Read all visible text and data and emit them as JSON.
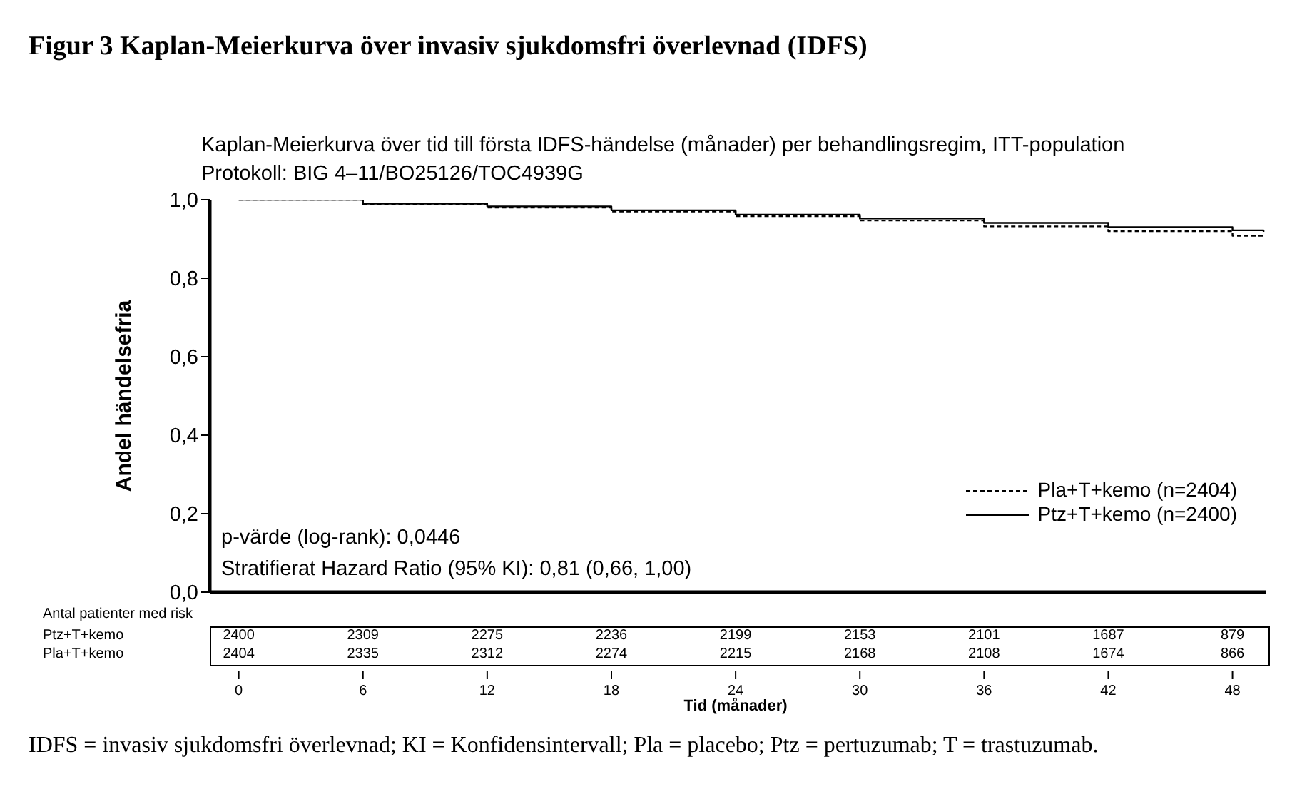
{
  "chart_data": {
    "type": "step",
    "title": "Figur 3 Kaplan-Meierkurva över invasiv sjukdomsfri överlevnad (IDFS)",
    "subtitle": "Kaplan-Meierkurva över tid till första IDFS-händelse (månader) per behandlingsregim, ITT-population",
    "xlabel": "Tid (månader)",
    "ylabel": "Andel händelsefria",
    "x": [
      0,
      6,
      12,
      18,
      24,
      30,
      36,
      42,
      48,
      49.5
    ],
    "series": [
      {
        "name": "Pla+T+kemo (n=2404)",
        "color": "#000000",
        "line_style": "dashed",
        "values": [
          1.0,
          0.989,
          0.98,
          0.97,
          0.958,
          0.947,
          0.932,
          0.92,
          0.908,
          0.906
        ]
      },
      {
        "name": "Ptz+T+kemo (n=2400)",
        "color": "#000000",
        "line_style": "solid",
        "values": [
          1.0,
          0.99,
          0.983,
          0.973,
          0.962,
          0.952,
          0.941,
          0.93,
          0.922,
          0.918
        ]
      }
    ],
    "xlim": [
      -1.4,
      49.6
    ],
    "xticks": [
      0,
      6,
      12,
      18,
      24,
      30,
      36,
      42,
      48
    ],
    "ylim": [
      0,
      1.0
    ],
    "yticks": [
      {
        "value": 0,
        "label": "0,0"
      },
      {
        "value": 0.2,
        "label": "0,2"
      },
      {
        "value": 0.4,
        "label": "0,4"
      },
      {
        "value": 0.6,
        "label": "0,6"
      },
      {
        "value": 0.8,
        "label": "0,8"
      },
      {
        "value": 1.0,
        "label": "1,0"
      }
    ],
    "grid": false,
    "legend": "bottom right",
    "marker": "none",
    "annotations": [
      "Protokoll: BIG 4–11/BO25126/TOC4939G",
      "p-värde (log-rank): 0,0446",
      "Stratifierat Hazard Ratio (95% KI): 0,81 (0,66, 1,00)",
      "Antal patienter med risk",
      "Ptz+T+kemo",
      "2400",
      "2309",
      "2275",
      "2236",
      "2199",
      "2153",
      "2101",
      "1687",
      "879",
      "Pla+T+kemo",
      "2404",
      "2335",
      "2312",
      "2274",
      "2215",
      "2168",
      "2108",
      "1674",
      "866",
      "IDFS = invasiv sjukdomsfri överlevnad; KI = Konfidensintervall; Pla = placebo; Ptz = pertuzumab; T = trastuzumab."
    ]
  }
}
